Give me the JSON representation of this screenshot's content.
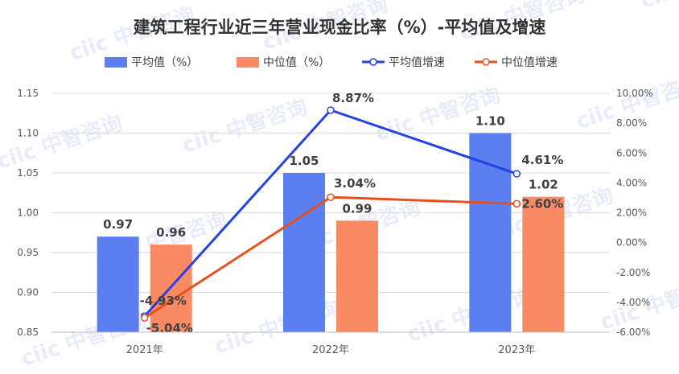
{
  "colors": {
    "avg_bar": "#5B7FF0",
    "median_bar": "#FA8A64",
    "avg_line": "#2443E3",
    "median_line": "#E8501E",
    "watermark": "#D6DEF6",
    "text": "#333333"
  },
  "watermark_text": "ciic 中智咨询",
  "chart_data": {
    "type": "bar",
    "title": "建筑工程行业近三年营业现金比率（%）-平均值及增速",
    "categories": [
      "2021年",
      "2022年",
      "2023年"
    ],
    "ylim": [
      0.85,
      1.15
    ],
    "y_ticks": [
      "1.15",
      "1.10",
      "1.05",
      "1.00",
      "0.95",
      "0.90",
      "0.85"
    ],
    "y2lim": [
      -6,
      10
    ],
    "y2_ticks": [
      "10.00%",
      "8.00%",
      "6.00%",
      "4.00%",
      "2.00%",
      "0.00%",
      "-2.00%",
      "-4.00%",
      "-6.00%"
    ],
    "legend_position": "top",
    "grid": true,
    "series": [
      {
        "name": "平均值（%）",
        "kind": "bar",
        "axis": "left",
        "values": [
          0.97,
          1.05,
          1.1
        ],
        "labels": [
          "0.97",
          "1.05",
          "1.10"
        ]
      },
      {
        "name": "中位值（%）",
        "kind": "bar",
        "axis": "left",
        "values": [
          0.96,
          0.99,
          1.02
        ],
        "labels": [
          "0.96",
          "0.99",
          "1.02"
        ]
      },
      {
        "name": "平均值增速",
        "kind": "line",
        "axis": "right",
        "values": [
          -4.93,
          8.87,
          4.61
        ],
        "labels": [
          "-4.93%",
          "8.87%",
          "4.61%"
        ]
      },
      {
        "name": "中位值增速",
        "kind": "line",
        "axis": "right",
        "values": [
          -5.04,
          3.04,
          2.6
        ],
        "labels": [
          "-5.04%",
          "3.04%",
          "2.60%"
        ]
      }
    ]
  }
}
